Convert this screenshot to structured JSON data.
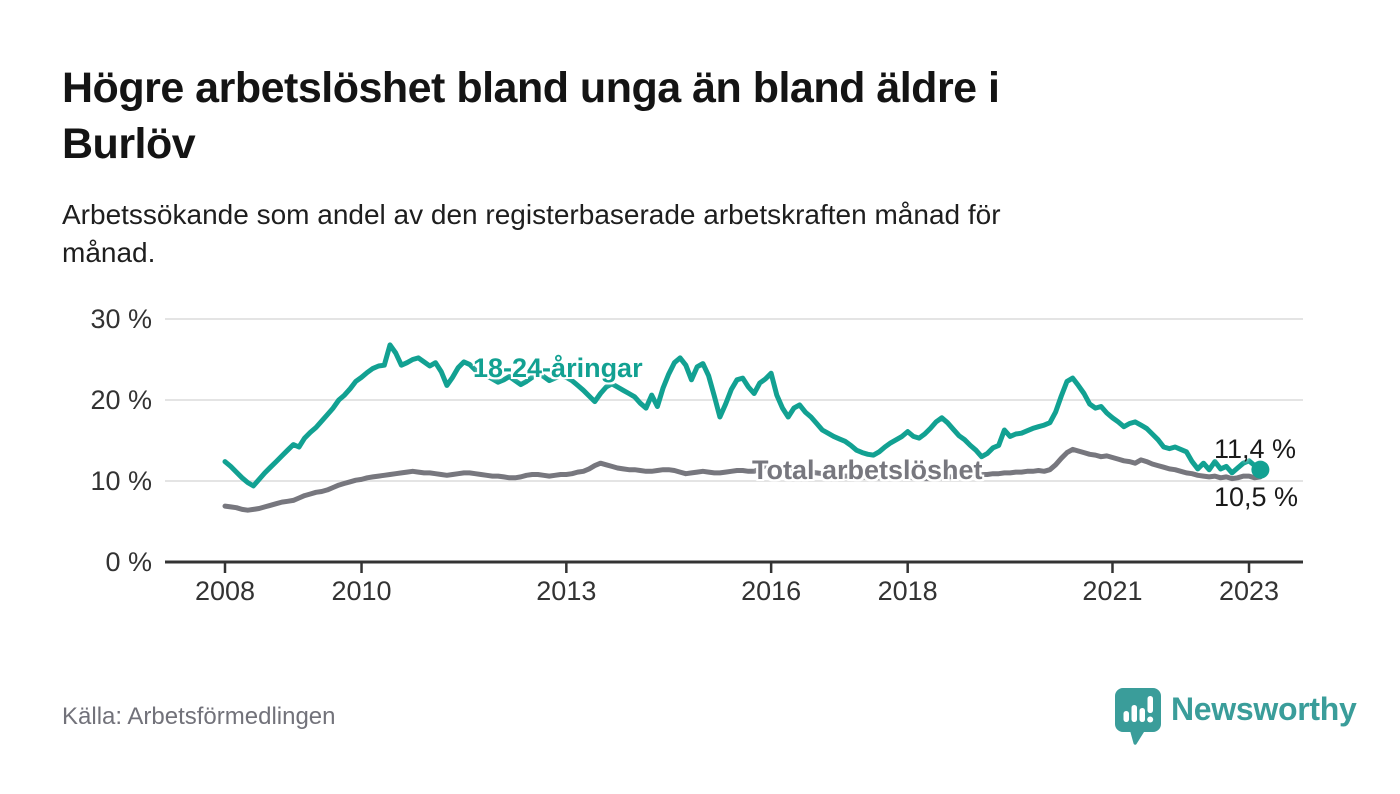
{
  "header": {
    "title_lines": [
      "Högre arbetslöshet bland unga än bland äldre i",
      "Burlöv"
    ],
    "subtitle_lines": [
      "Arbetssökande som andel av den registerbaserade arbetskraften månad för",
      "månad."
    ]
  },
  "chart": {
    "series_labels": {
      "youth": "18-24-åringar",
      "total": "Total arbetslöshet"
    },
    "end_labels": {
      "youth": "11,4 %",
      "total": "10,5 %"
    },
    "y_axis": {
      "ticks": [
        {
          "label": "30 %",
          "value": 30
        },
        {
          "label": "20 %",
          "value": 20
        },
        {
          "label": "10 %",
          "value": 10
        },
        {
          "label": "0 %",
          "value": 0
        }
      ]
    },
    "x_axis": {
      "ticks": [
        {
          "label": "2008",
          "year": 2008
        },
        {
          "label": "2010",
          "year": 2010
        },
        {
          "label": "2013",
          "year": 2013
        },
        {
          "label": "2016",
          "year": 2016
        },
        {
          "label": "2018",
          "year": 2018
        },
        {
          "label": "2021",
          "year": 2021
        },
        {
          "label": "2023",
          "year": 2023
        }
      ]
    }
  },
  "footer": {
    "source": "Källa: Arbetsförmedlingen",
    "brand": "Newsworthy"
  },
  "colors": {
    "youth": "#12A192",
    "total": "#77777E",
    "axis": "#333333",
    "grid": "#DBDBDB",
    "value_label": "#1A1A1A",
    "brand": "#3A9D9A"
  },
  "chart_data": {
    "type": "line",
    "title": "Högre arbetslöshet bland unga än bland äldre i Burlöv",
    "subtitle": "Arbetssökande som andel av den registerbaserade arbetskraften månad för månad.",
    "unit": "%",
    "ylim": [
      0,
      30
    ],
    "y_tick_values": [
      0,
      10,
      20,
      30
    ],
    "x_interval": "monthly",
    "x_start": "2008-01",
    "x_end": "2023-03",
    "x_tick_labels": [
      "2008",
      "2010",
      "2013",
      "2016",
      "2018",
      "2021",
      "2023"
    ],
    "grid": "horizontal",
    "legend_position": "inline-labels",
    "source": "Källa: Arbetsförmedlingen",
    "series": [
      {
        "name": "Total arbetslöshet",
        "color": "#77777E",
        "last_value": 10.5,
        "last_value_label": "10,5 %",
        "values": [
          6.9,
          6.8,
          6.7,
          6.5,
          6.4,
          6.5,
          6.6,
          6.8,
          7.0,
          7.2,
          7.4,
          7.5,
          7.6,
          7.9,
          8.2,
          8.4,
          8.6,
          8.7,
          8.9,
          9.2,
          9.5,
          9.7,
          9.9,
          10.1,
          10.2,
          10.4,
          10.5,
          10.6,
          10.7,
          10.8,
          10.9,
          11.0,
          11.1,
          11.2,
          11.1,
          11.0,
          11.0,
          10.9,
          10.8,
          10.7,
          10.8,
          10.9,
          11.0,
          11.0,
          10.9,
          10.8,
          10.7,
          10.6,
          10.6,
          10.5,
          10.4,
          10.4,
          10.5,
          10.7,
          10.8,
          10.8,
          10.7,
          10.6,
          10.7,
          10.8,
          10.8,
          10.9,
          11.1,
          11.2,
          11.5,
          11.9,
          12.2,
          12.0,
          11.8,
          11.6,
          11.5,
          11.4,
          11.4,
          11.3,
          11.2,
          11.2,
          11.3,
          11.4,
          11.4,
          11.3,
          11.1,
          10.9,
          11.0,
          11.1,
          11.2,
          11.1,
          11.0,
          11.0,
          11.1,
          11.2,
          11.3,
          11.3,
          11.2,
          11.2,
          11.5,
          11.9,
          11.8,
          11.7,
          11.6,
          11.5,
          11.4,
          11.3,
          11.2,
          11.1,
          11.0,
          10.9,
          10.8,
          10.8,
          10.7,
          10.6,
          10.6,
          10.5,
          10.5,
          10.4,
          10.4,
          10.4,
          10.5,
          10.5,
          10.6,
          10.6,
          10.5,
          10.4,
          10.4,
          10.3,
          10.3,
          10.4,
          10.4,
          10.5,
          10.5,
          10.6,
          10.6,
          10.7,
          10.7,
          10.8,
          10.8,
          10.9,
          10.9,
          11.0,
          11.0,
          11.1,
          11.1,
          11.2,
          11.2,
          11.3,
          11.2,
          11.4,
          12.0,
          12.8,
          13.5,
          13.9,
          13.7,
          13.5,
          13.3,
          13.2,
          13.0,
          13.1,
          12.9,
          12.7,
          12.5,
          12.4,
          12.2,
          12.6,
          12.4,
          12.1,
          11.9,
          11.7,
          11.5,
          11.4,
          11.2,
          11.0,
          10.9,
          10.7,
          10.6,
          10.5,
          10.6,
          10.4,
          10.5,
          10.3,
          10.4,
          10.6,
          10.6,
          10.4,
          10.5
        ]
      },
      {
        "name": "18-24-åringar",
        "color": "#12A192",
        "last_value": 11.4,
        "last_value_label": "11,4 %",
        "end_dot": true,
        "values": [
          12.4,
          11.8,
          11.1,
          10.4,
          9.8,
          9.4,
          10.2,
          11.0,
          11.7,
          12.4,
          13.1,
          13.8,
          14.5,
          14.2,
          15.3,
          16.0,
          16.6,
          17.4,
          18.2,
          19.0,
          20.0,
          20.6,
          21.4,
          22.3,
          22.8,
          23.4,
          23.9,
          24.2,
          24.3,
          26.8,
          25.8,
          24.3,
          24.6,
          25.0,
          25.2,
          24.7,
          24.2,
          24.6,
          23.5,
          21.8,
          22.8,
          24.0,
          24.7,
          24.4,
          23.7,
          23.2,
          23.0,
          22.6,
          22.2,
          22.5,
          22.9,
          22.4,
          21.9,
          22.3,
          22.8,
          23.2,
          22.9,
          22.4,
          22.7,
          23.0,
          22.8,
          22.4,
          21.8,
          21.2,
          20.5,
          19.8,
          20.8,
          21.6,
          22.0,
          21.6,
          21.2,
          20.8,
          20.4,
          19.6,
          19.0,
          20.6,
          19.2,
          21.5,
          23.2,
          24.6,
          25.2,
          24.3,
          22.5,
          24.1,
          24.5,
          23.0,
          20.5,
          17.9,
          19.5,
          21.3,
          22.5,
          22.7,
          21.6,
          20.8,
          22.1,
          22.6,
          23.3,
          20.6,
          19.0,
          17.9,
          19.0,
          19.4,
          18.5,
          17.9,
          17.1,
          16.3,
          15.9,
          15.5,
          15.2,
          14.9,
          14.4,
          13.8,
          13.5,
          13.3,
          13.2,
          13.6,
          14.2,
          14.7,
          15.1,
          15.5,
          16.1,
          15.5,
          15.3,
          15.8,
          16.5,
          17.3,
          17.8,
          17.2,
          16.4,
          15.6,
          15.1,
          14.4,
          13.8,
          13.0,
          13.4,
          14.1,
          14.4,
          16.3,
          15.5,
          15.8,
          15.9,
          16.2,
          16.5,
          16.7,
          16.9,
          17.2,
          18.5,
          20.5,
          22.3,
          22.7,
          21.8,
          20.8,
          19.5,
          19.0,
          19.2,
          18.4,
          17.8,
          17.3,
          16.7,
          17.1,
          17.3,
          16.9,
          16.5,
          15.8,
          15.1,
          14.2,
          14.0,
          14.2,
          13.9,
          13.6,
          12.4,
          11.5,
          12.2,
          11.4,
          12.4,
          11.5,
          11.8,
          11.0,
          11.6,
          12.2,
          12.5,
          11.9,
          11.4
        ]
      }
    ]
  }
}
